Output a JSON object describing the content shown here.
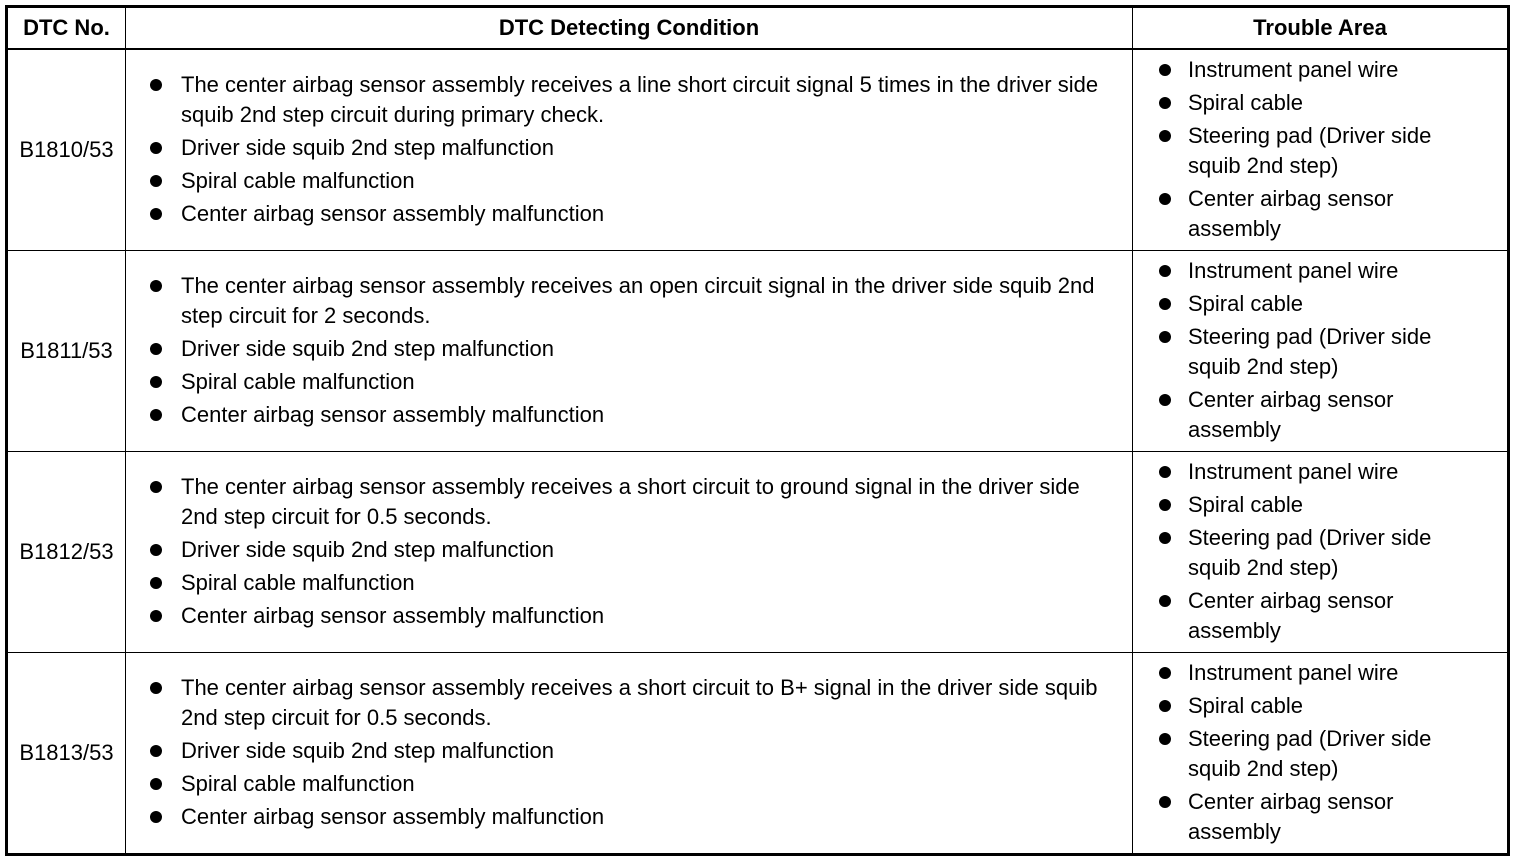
{
  "headers": [
    "DTC No.",
    "DTC Detecting Condition",
    "Trouble Area"
  ],
  "rows": [
    {
      "code": "B1810/53",
      "conditions": [
        "The center airbag sensor assembly receives a line short circuit signal 5 times in the driver side squib 2nd step circuit during primary check.",
        "Driver side squib 2nd step malfunction",
        "Spiral cable malfunction",
        "Center airbag sensor assembly malfunction"
      ],
      "areas": [
        "Instrument panel wire",
        "Spiral cable",
        "Steering pad (Driver side squib 2nd step)",
        "Center airbag sensor assembly"
      ]
    },
    {
      "code": "B1811/53",
      "conditions": [
        "The center airbag sensor assembly receives an open circuit signal in the driver side squib 2nd step circuit for 2 seconds.",
        "Driver side squib 2nd step malfunction",
        "Spiral cable malfunction",
        "Center airbag sensor assembly malfunction"
      ],
      "areas": [
        "Instrument panel wire",
        "Spiral cable",
        "Steering pad (Driver side squib 2nd step)",
        "Center airbag sensor assembly"
      ]
    },
    {
      "code": "B1812/53",
      "conditions": [
        "The center airbag sensor assembly receives a short circuit to ground signal in the driver side 2nd step circuit for 0.5 seconds.",
        "Driver side squib 2nd step malfunction",
        "Spiral cable malfunction",
        "Center airbag sensor assembly malfunction"
      ],
      "areas": [
        "Instrument panel wire",
        "Spiral cable",
        "Steering pad (Driver side squib 2nd step)",
        "Center airbag sensor assembly"
      ]
    },
    {
      "code": "B1813/53",
      "conditions": [
        "The center airbag sensor assembly receives a short circuit to B+ signal in the driver side squib 2nd step circuit for 0.5 seconds.",
        "Driver side squib 2nd step malfunction",
        "Spiral cable malfunction",
        "Center airbag sensor assembly malfunction"
      ],
      "areas": [
        "Instrument panel wire",
        "Spiral cable",
        "Steering pad (Driver side squib 2nd step)",
        "Center airbag sensor assembly"
      ]
    }
  ]
}
